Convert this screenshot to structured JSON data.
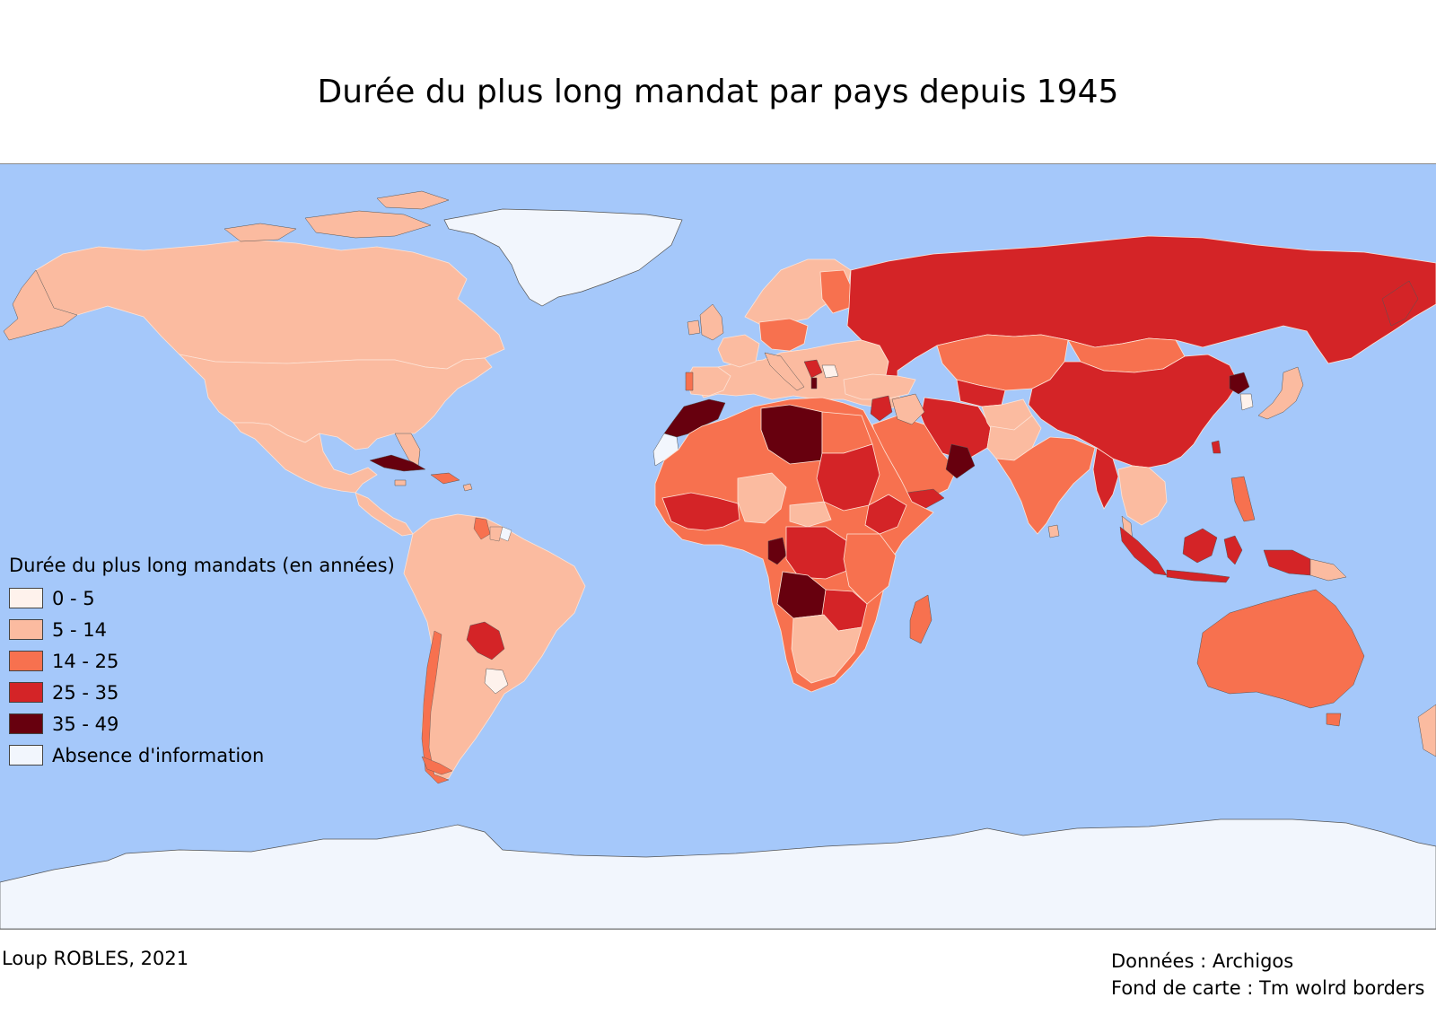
{
  "title": "Durée du plus long mandat par pays depuis 1945",
  "colors": {
    "ocean": "#a5c8fa",
    "nodata": "#f2f6fd",
    "c0_5": "#fef2ec",
    "c5_14": "#fbbba0",
    "c14_25": "#f7714f",
    "c25_35": "#d42427",
    "c35_49": "#67000e"
  },
  "legend": {
    "title": "Durée du plus long mandats (en années)",
    "items": [
      {
        "label": "0 - 5",
        "color": "#fef2ec"
      },
      {
        "label": "5 - 14",
        "color": "#fbbba0"
      },
      {
        "label": "14 - 25",
        "color": "#f7714f"
      },
      {
        "label": "25 - 35",
        "color": "#d42427"
      },
      {
        "label": "35 - 49",
        "color": "#67000e"
      },
      {
        "label": "Absence d'information",
        "color": "#f2f6fd"
      }
    ]
  },
  "credits": {
    "author": "Loup ROBLES, 2021",
    "data_source": "Données : Archigos",
    "basemap": "Fond de carte : Tm wolrd borders"
  }
}
